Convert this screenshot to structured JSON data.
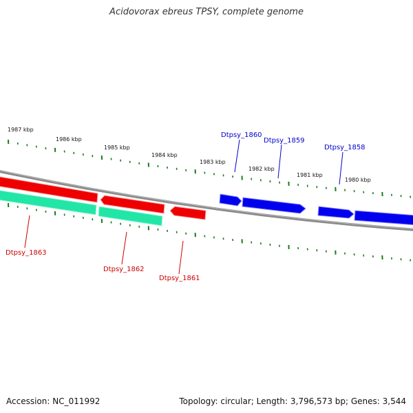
{
  "title": "Acidovorax ebreus TPSY, complete genome",
  "footer": {
    "accession": "Accession: NC_011992",
    "summary": "Topology: circular; Length: 3,796,573 bp; Genes: 3,544"
  },
  "colors": {
    "backbone": "#808080",
    "forward_gene": "#0000ee",
    "reverse_gene": "#ee0000",
    "reverse_gene_secondary": "#22e6a6",
    "label_forward": "#0000cc",
    "label_reverse": "#cc0000",
    "tick_major": "#1a7a1a",
    "tick_minor": "#1a7a1a"
  },
  "scale_labels": [
    "1987 kbp",
    "1986 kbp",
    "1985 kbp",
    "1984 kbp",
    "1983 kbp",
    "1982 kbp",
    "1981 kbp",
    "1980 kbp"
  ],
  "genes": [
    {
      "label": "Dtpsy_1858",
      "strand": "forward"
    },
    {
      "label": "Dtpsy_1859",
      "strand": "forward"
    },
    {
      "label": "Dtpsy_1860",
      "strand": "forward"
    },
    {
      "label": "Dtpsy_1861",
      "strand": "reverse"
    },
    {
      "label": "Dtpsy_1862",
      "strand": "reverse"
    },
    {
      "label": "Dtpsy_1863",
      "strand": "reverse"
    }
  ]
}
